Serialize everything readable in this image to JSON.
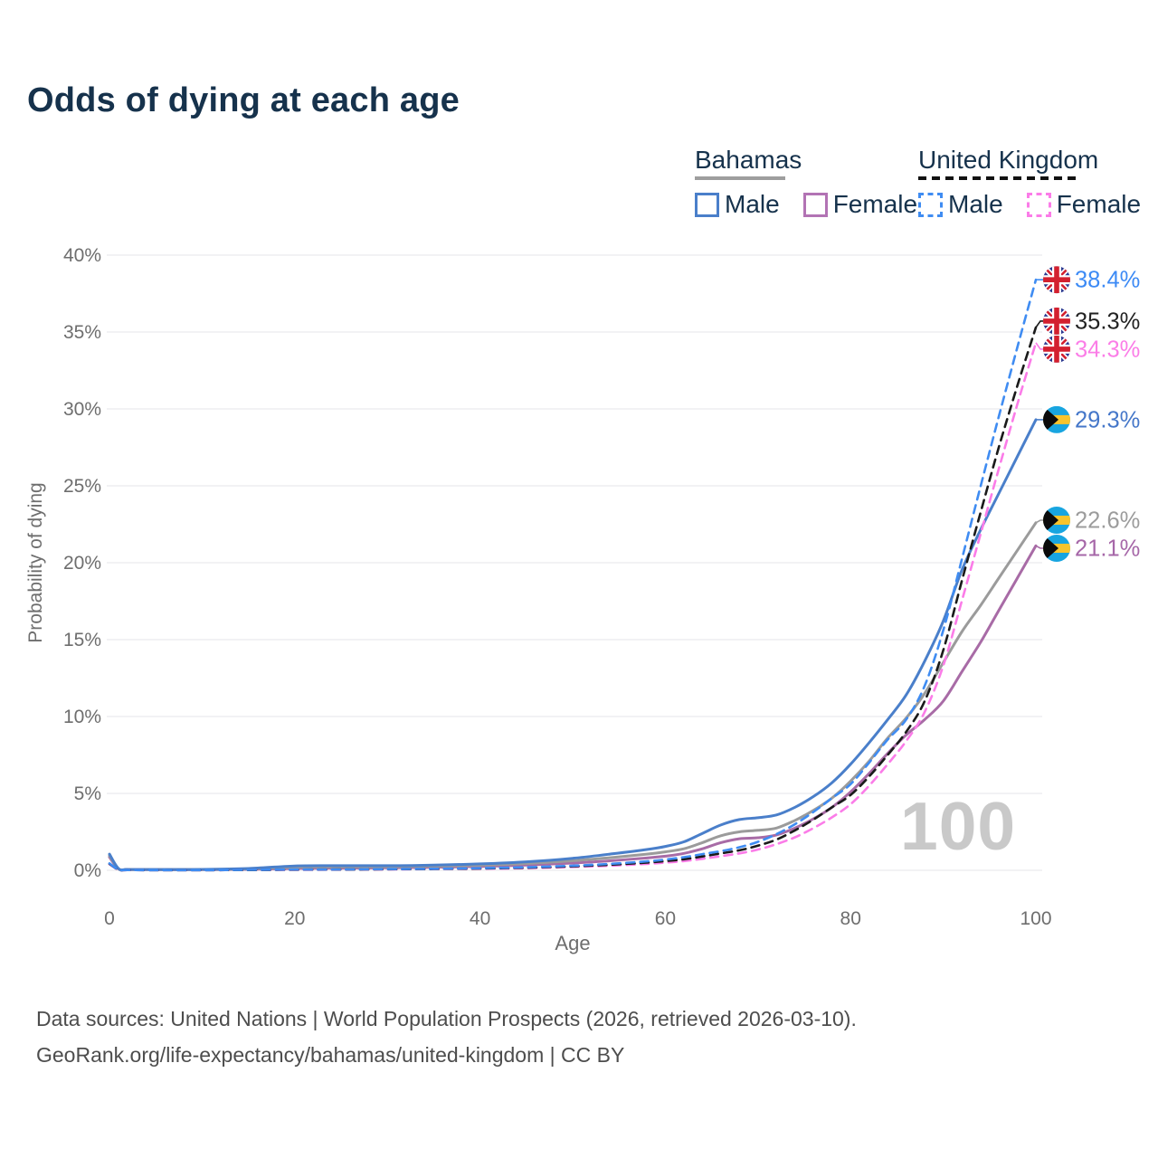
{
  "title": "Odds of dying at each age",
  "legend": {
    "groups": [
      {
        "label": "Bahamas",
        "underline_style": "solid",
        "underline_color": "#9e9e9e",
        "items": [
          {
            "label": "Male",
            "color": "#4a7fca",
            "style": "solid"
          },
          {
            "label": "Female",
            "color": "#b273b4",
            "style": "solid"
          }
        ]
      },
      {
        "label": "United Kingdom",
        "underline_style": "dashed",
        "underline_color": "#111111",
        "items": [
          {
            "label": "Male",
            "color": "#3f8cf2",
            "style": "dashed"
          },
          {
            "label": "Female",
            "color": "#fb7ce8",
            "style": "dashed"
          }
        ]
      }
    ]
  },
  "chart_data": {
    "type": "line",
    "title": "Odds of dying at each age",
    "xlabel": "Age",
    "ylabel": "Probability of dying",
    "xlim": [
      0,
      100
    ],
    "ylim": [
      0,
      40
    ],
    "x_ticks": [
      0,
      20,
      40,
      60,
      80,
      100
    ],
    "y_ticks": [
      0,
      5,
      10,
      15,
      20,
      25,
      30,
      35,
      40
    ],
    "y_tick_suffix": "%",
    "grid": "horizontal",
    "legend_position": "top-right",
    "watermark": "100",
    "ages": [
      0,
      1,
      2,
      5,
      10,
      15,
      20,
      25,
      30,
      35,
      40,
      45,
      50,
      54,
      58,
      60,
      62,
      64,
      66,
      68,
      70,
      72,
      74,
      76,
      78,
      80,
      82,
      84,
      86,
      88,
      90,
      92,
      94,
      96,
      98,
      100
    ],
    "series": [
      {
        "id": "bahamas-female",
        "name": "Bahamas Female",
        "country": "Bahamas",
        "sex": "Female",
        "color": "#a86ba6",
        "label_color": "#a667a8",
        "dash": "solid",
        "flag": "bahamas",
        "end_label": "21.1%",
        "end_value": 21.1,
        "values": [
          0.85,
          0.08,
          0.05,
          0.04,
          0.04,
          0.06,
          0.12,
          0.14,
          0.16,
          0.2,
          0.25,
          0.34,
          0.47,
          0.62,
          0.8,
          0.92,
          1.1,
          1.4,
          1.8,
          2.05,
          2.12,
          2.3,
          2.75,
          3.35,
          4.1,
          5.1,
          6.3,
          7.6,
          8.8,
          9.8,
          11.0,
          12.9,
          14.8,
          16.9,
          19.0,
          21.1
        ]
      },
      {
        "id": "bahamas-total",
        "name": "Bahamas",
        "country": "Bahamas",
        "sex": "Both",
        "color": "#9b9b9b",
        "label_color": "#9c9c9c",
        "dash": "solid",
        "flag": "bahamas",
        "end_label": "22.6%",
        "end_value": 22.6,
        "values": [
          0.95,
          0.09,
          0.05,
          0.04,
          0.05,
          0.09,
          0.2,
          0.22,
          0.23,
          0.27,
          0.33,
          0.44,
          0.62,
          0.82,
          1.05,
          1.2,
          1.4,
          1.8,
          2.25,
          2.5,
          2.6,
          2.75,
          3.25,
          3.9,
          4.7,
          5.8,
          7.1,
          8.6,
          9.9,
          11.5,
          13.5,
          15.5,
          17.2,
          19.0,
          20.8,
          22.6
        ]
      },
      {
        "id": "bahamas-male",
        "name": "Bahamas Male",
        "country": "Bahamas",
        "sex": "Male",
        "color": "#4a7fca",
        "label_color": "#4577c9",
        "dash": "solid",
        "flag": "bahamas",
        "end_label": "29.3%",
        "end_value": 29.3,
        "values": [
          1.05,
          0.1,
          0.06,
          0.05,
          0.06,
          0.12,
          0.28,
          0.3,
          0.3,
          0.34,
          0.42,
          0.55,
          0.78,
          1.05,
          1.35,
          1.55,
          1.85,
          2.4,
          2.95,
          3.3,
          3.42,
          3.6,
          4.1,
          4.8,
          5.7,
          6.9,
          8.3,
          9.8,
          11.4,
          13.6,
          16.2,
          19.5,
          22.1,
          24.5,
          26.9,
          29.3
        ]
      },
      {
        "id": "uk-female",
        "name": "United Kingdom Female",
        "country": "United Kingdom",
        "sex": "Female",
        "color": "#fb7ce8",
        "label_color": "#fb7de7",
        "dash": "dashed",
        "flag": "uk",
        "end_label": "34.3%",
        "end_value": 34.3,
        "values": [
          0.4,
          0.03,
          0.02,
          0.01,
          0.01,
          0.02,
          0.03,
          0.04,
          0.06,
          0.08,
          0.1,
          0.14,
          0.22,
          0.3,
          0.42,
          0.5,
          0.6,
          0.75,
          0.92,
          1.1,
          1.35,
          1.7,
          2.15,
          2.75,
          3.45,
          4.3,
          5.5,
          6.9,
          8.4,
          10.3,
          13.3,
          17.5,
          21.8,
          26.1,
          30.3,
          34.3
        ]
      },
      {
        "id": "uk-total",
        "name": "United Kingdom",
        "country": "United Kingdom",
        "sex": "Both",
        "color": "#1a1a1a",
        "label_color": "#222222",
        "dash": "dashed",
        "flag": "uk",
        "end_label": "35.3%",
        "end_value": 35.3,
        "values": [
          0.42,
          0.04,
          0.02,
          0.01,
          0.01,
          0.02,
          0.04,
          0.05,
          0.07,
          0.09,
          0.12,
          0.17,
          0.26,
          0.36,
          0.5,
          0.6,
          0.72,
          0.9,
          1.1,
          1.3,
          1.6,
          2.0,
          2.6,
          3.3,
          4.1,
          4.9,
          6.1,
          7.5,
          9.0,
          11.0,
          14.3,
          18.8,
          23.2,
          27.5,
          31.5,
          35.3
        ]
      },
      {
        "id": "uk-male",
        "name": "United Kingdom Male",
        "country": "United Kingdom",
        "sex": "Male",
        "color": "#3f8cf2",
        "label_color": "#3c8af5",
        "dash": "dashed",
        "flag": "uk",
        "end_label": "38.4%",
        "end_value": 38.4,
        "values": [
          0.45,
          0.04,
          0.02,
          0.01,
          0.01,
          0.03,
          0.05,
          0.06,
          0.08,
          0.1,
          0.14,
          0.2,
          0.3,
          0.42,
          0.58,
          0.7,
          0.85,
          1.05,
          1.25,
          1.5,
          1.85,
          2.35,
          3.0,
          3.8,
          4.7,
          5.6,
          7.0,
          8.5,
          9.8,
          12.0,
          15.6,
          20.2,
          24.9,
          29.5,
          34.0,
          38.4
        ]
      }
    ]
  },
  "footer": {
    "line1": "Data sources: United Nations | World Population Prospects (2026, retrieved 2026-03-10).",
    "line2": "GeoRank.org/life-expectancy/bahamas/united-kingdom | CC BY"
  }
}
